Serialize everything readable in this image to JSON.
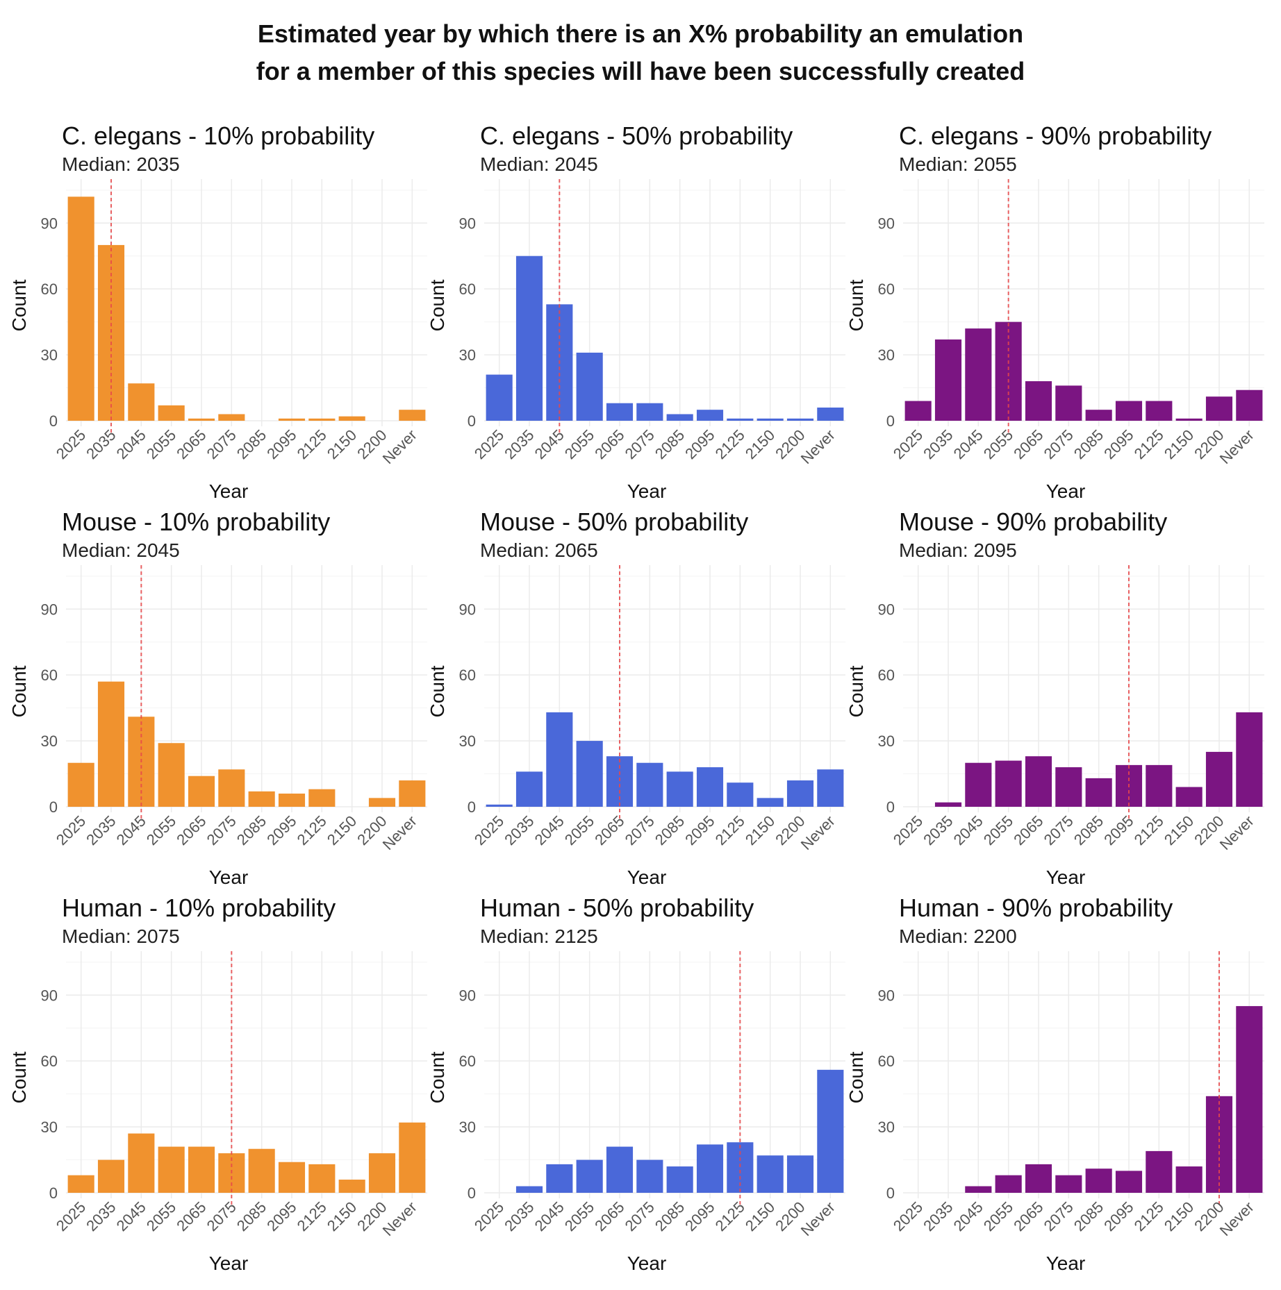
{
  "title_line1": "Estimated year by which there is an X% probability an emulation",
  "title_line2": "for a member of this species will have been successfully created",
  "chart_data": {
    "type": "bar",
    "title": "Estimated year by which there is an X% probability an emulation for a member of this species will have been successfully created",
    "categories": [
      "2025",
      "2035",
      "2045",
      "2055",
      "2065",
      "2075",
      "2085",
      "2095",
      "2125",
      "2150",
      "2200",
      "Never"
    ],
    "xlabel": "Year",
    "ylabel": "Count",
    "ylim": [
      0,
      110
    ],
    "yticks": [
      0,
      30,
      60,
      90
    ],
    "grid": true,
    "median_line_color": "#e8474a",
    "colors": {
      "10%": "#f0922e",
      "50%": "#4a68d9",
      "90%": "#7b1582"
    },
    "panels": [
      {
        "title": "C. elegans - 10% probability",
        "subtitle": "Median: 2035",
        "median": "2035",
        "color": "#f0922e",
        "values": [
          102,
          80,
          17,
          7,
          1,
          3,
          0,
          1,
          1,
          2,
          0,
          5
        ]
      },
      {
        "title": "C. elegans - 50% probability",
        "subtitle": "Median: 2045",
        "median": "2045",
        "color": "#4a68d9",
        "values": [
          21,
          75,
          53,
          31,
          8,
          8,
          3,
          5,
          1,
          1,
          1,
          6
        ]
      },
      {
        "title": "C. elegans - 90% probability",
        "subtitle": "Median: 2055",
        "median": "2055",
        "color": "#7b1582",
        "values": [
          9,
          37,
          42,
          45,
          18,
          16,
          5,
          9,
          9,
          1,
          11,
          14
        ]
      },
      {
        "title": "Mouse - 10% probability",
        "subtitle": "Median: 2045",
        "median": "2045",
        "color": "#f0922e",
        "values": [
          20,
          57,
          41,
          29,
          14,
          17,
          7,
          6,
          8,
          0,
          4,
          12
        ]
      },
      {
        "title": "Mouse - 50% probability",
        "subtitle": "Median: 2065",
        "median": "2065",
        "color": "#4a68d9",
        "values": [
          1,
          16,
          43,
          30,
          23,
          20,
          16,
          18,
          11,
          4,
          12,
          17
        ]
      },
      {
        "title": "Mouse - 90% probability",
        "subtitle": "Median: 2095",
        "median": "2095",
        "color": "#7b1582",
        "values": [
          0,
          2,
          20,
          21,
          23,
          18,
          13,
          19,
          19,
          9,
          25,
          43
        ]
      },
      {
        "title": "Human - 10% probability",
        "subtitle": "Median: 2075",
        "median": "2075",
        "color": "#f0922e",
        "values": [
          8,
          15,
          27,
          21,
          21,
          18,
          20,
          14,
          13,
          6,
          18,
          32
        ]
      },
      {
        "title": "Human - 50% probability",
        "subtitle": "Median: 2125",
        "median": "2125",
        "color": "#4a68d9",
        "values": [
          0,
          3,
          13,
          15,
          21,
          15,
          12,
          22,
          23,
          17,
          17,
          56
        ]
      },
      {
        "title": "Human - 90% probability",
        "subtitle": "Median: 2200",
        "median": "2200",
        "color": "#7b1582",
        "values": [
          0,
          0,
          3,
          8,
          13,
          8,
          11,
          10,
          19,
          12,
          44,
          85
        ]
      }
    ]
  }
}
